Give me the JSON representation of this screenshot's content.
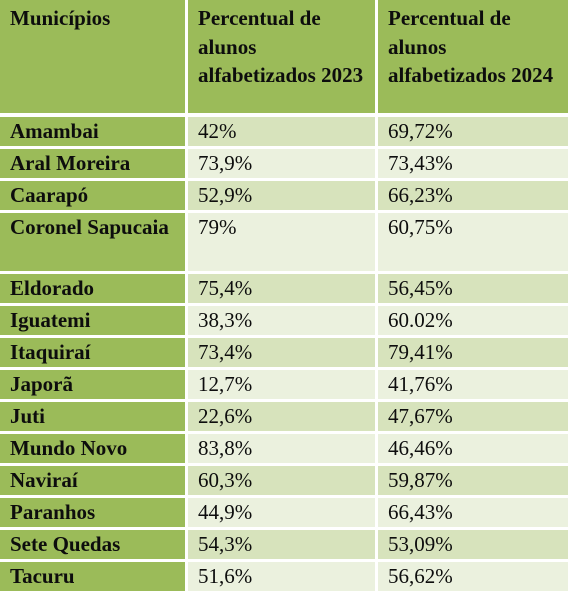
{
  "table": {
    "headers": [
      "Municípios",
      "Percentual de alunos alfabetizados 2023",
      "Percentual de alunos alfabetizados 2024"
    ],
    "rows": [
      {
        "municipio": "Amambai",
        "p2023": "42%",
        "p2024": "69,72%"
      },
      {
        "municipio": "Aral Moreira",
        "p2023": "73,9%",
        "p2024": "73,43%"
      },
      {
        "municipio": "Caarapó",
        "p2023": "52,9%",
        "p2024": "66,23%"
      },
      {
        "municipio": "Coronel Sapucaia",
        "p2023": "79%",
        "p2024": "60,75%"
      },
      {
        "municipio": "Eldorado",
        "p2023": "75,4%",
        "p2024": "56,45%"
      },
      {
        "municipio": "Iguatemi",
        "p2023": "38,3%",
        "p2024": "60.02%"
      },
      {
        "municipio": "Itaquiraí",
        "p2023": "73,4%",
        "p2024": "79,41%"
      },
      {
        "municipio": "Japorã",
        "p2023": "12,7%",
        "p2024": "41,76%"
      },
      {
        "municipio": "Juti",
        "p2023": "22,6%",
        "p2024": "47,67%"
      },
      {
        "municipio": "Mundo Novo",
        "p2023": "83,8%",
        "p2024": "46,46%"
      },
      {
        "municipio": "Naviraí",
        "p2023": "60,3%",
        "p2024": "59,87%"
      },
      {
        "municipio": "Paranhos",
        "p2023": "44,9%",
        "p2024": "66,43%"
      },
      {
        "municipio": "Sete Quedas",
        "p2023": "54,3%",
        "p2024": "53,09%"
      },
      {
        "municipio": "Tacuru",
        "p2023": "51,6%",
        "p2024": "56,62%"
      }
    ]
  },
  "colors": {
    "header_green": "#9bbb59",
    "row_light_a": "#d7e3bc",
    "row_light_b": "#ebf1de"
  }
}
